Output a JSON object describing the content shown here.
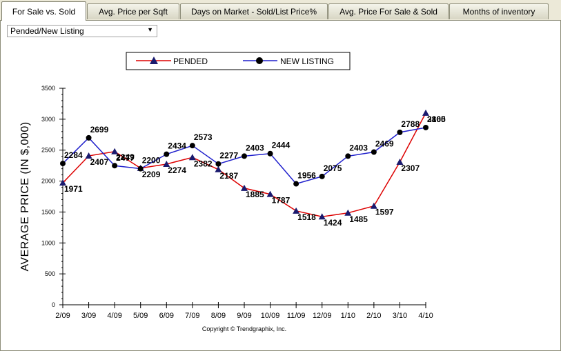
{
  "tabs": [
    {
      "label": "For Sale vs. Sold",
      "active": true
    },
    {
      "label": "Avg. Price per Sqft",
      "active": false
    },
    {
      "label": "Days on Market - Sold/List Price%",
      "active": false
    },
    {
      "label": "Avg. Price For Sale & Sold",
      "active": false
    },
    {
      "label": "Months of inventory",
      "active": false
    }
  ],
  "selector": {
    "value": "Pended/New Listing",
    "icon": "chevron-down-icon"
  },
  "copyright": "Copyright © Trendgraphix, Inc.",
  "chart_data": {
    "type": "line",
    "title": "",
    "xlabel": "",
    "ylabel": "AVERAGE PRICE (IN $,000)",
    "ylim": [
      0,
      3500
    ],
    "yticks": [
      0,
      500,
      1000,
      1500,
      2000,
      2500,
      3000,
      3500
    ],
    "categories": [
      "2/09",
      "3/09",
      "4/09",
      "5/09",
      "6/09",
      "7/09",
      "8/09",
      "9/09",
      "10/09",
      "11/09",
      "12/09",
      "1/10",
      "2/10",
      "3/10",
      "4/10"
    ],
    "legend_position": "top-center",
    "grid": false,
    "series": [
      {
        "name": "PENDED",
        "color": "#dd0000",
        "marker": "triangle",
        "marker_color": "#1a1a6e",
        "values": [
          1971,
          2407,
          2477,
          2209,
          2274,
          2382,
          2187,
          1885,
          1787,
          1518,
          1424,
          1485,
          1597,
          2307,
          3100
        ]
      },
      {
        "name": "NEW LISTING",
        "color": "#1f1fcc",
        "marker": "circle",
        "marker_color": "#000000",
        "values": [
          2284,
          2699,
          2249,
          2200,
          2434,
          2573,
          2277,
          2403,
          2444,
          1956,
          2075,
          2403,
          2469,
          2788,
          2865
        ]
      }
    ]
  }
}
